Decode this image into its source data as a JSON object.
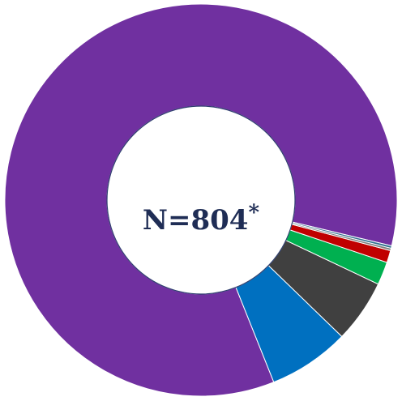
{
  "chart_data": {
    "type": "pie",
    "donut": true,
    "center_label": {
      "main": "N=804",
      "mark": "*"
    },
    "series": [
      {
        "values": [
          84.8,
          6.7,
          5.2,
          1.9,
          1.0,
          0.2,
          0.2
        ],
        "colors": [
          "#7030a0",
          "#0070c0",
          "#404040",
          "#00b050",
          "#c00000",
          "#7f7f7f",
          "#2f6f8f"
        ]
      }
    ],
    "start_angle_deg": 346.5,
    "direction": "counterclockwise",
    "legend": "none",
    "title": ""
  }
}
